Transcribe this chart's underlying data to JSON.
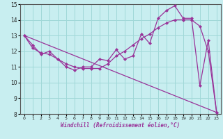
{
  "title": "",
  "xlabel": "Windchill (Refroidissement éolien,°C)",
  "ylabel": "",
  "bg_color": "#c8eef0",
  "grid_color": "#a0d8d8",
  "line_color": "#993399",
  "xlim": [
    -0.5,
    23.5
  ],
  "ylim": [
    8,
    15
  ],
  "yticks": [
    8,
    9,
    10,
    11,
    12,
    13,
    14,
    15
  ],
  "xticks": [
    0,
    1,
    2,
    3,
    4,
    5,
    6,
    7,
    8,
    9,
    10,
    11,
    12,
    13,
    14,
    15,
    16,
    17,
    18,
    19,
    20,
    21,
    22,
    23
  ],
  "line1_x": [
    0,
    1,
    2,
    3,
    4,
    5,
    6,
    7,
    8,
    9,
    10,
    11,
    12,
    13,
    14,
    15,
    16,
    17,
    18,
    19,
    20,
    21,
    22,
    23
  ],
  "line1_y": [
    13.0,
    12.4,
    11.8,
    12.0,
    11.5,
    11.0,
    10.8,
    11.0,
    11.0,
    11.5,
    11.4,
    12.1,
    11.5,
    11.7,
    13.1,
    12.5,
    14.1,
    14.6,
    14.9,
    14.1,
    14.1,
    9.8,
    12.7,
    8.1
  ],
  "line2_x": [
    0,
    1,
    2,
    3,
    4,
    5,
    6,
    7,
    8,
    9,
    10,
    11,
    12,
    13,
    14,
    15,
    16,
    17,
    18,
    19,
    20,
    21,
    22,
    23
  ],
  "line2_y": [
    13.0,
    12.2,
    11.9,
    11.8,
    11.5,
    11.2,
    11.0,
    10.9,
    10.9,
    10.9,
    11.2,
    11.7,
    12.0,
    12.4,
    12.8,
    13.1,
    13.5,
    13.8,
    14.0,
    14.0,
    14.0,
    13.6,
    12.0,
    8.1
  ],
  "line3_x": [
    0,
    23
  ],
  "line3_y": [
    13.0,
    8.1
  ]
}
